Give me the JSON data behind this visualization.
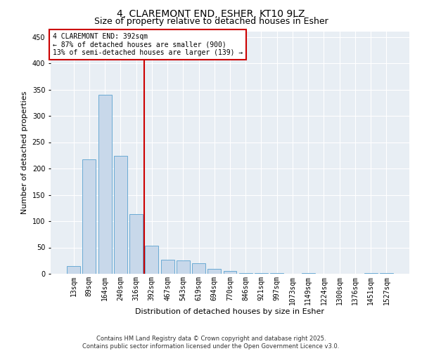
{
  "title": "4, CLAREMONT END, ESHER, KT10 9LZ",
  "subtitle": "Size of property relative to detached houses in Esher",
  "xlabel": "Distribution of detached houses by size in Esher",
  "ylabel": "Number of detached properties",
  "bar_color": "#c8d8ea",
  "bar_edge_color": "#6aaad4",
  "bg_color": "#e8eef4",
  "grid_color": "#ffffff",
  "categories": [
    "13sqm",
    "89sqm",
    "164sqm",
    "240sqm",
    "316sqm",
    "392sqm",
    "467sqm",
    "543sqm",
    "619sqm",
    "694sqm",
    "770sqm",
    "846sqm",
    "921sqm",
    "997sqm",
    "1073sqm",
    "1149sqm",
    "1224sqm",
    "1300sqm",
    "1376sqm",
    "1451sqm",
    "1527sqm"
  ],
  "values": [
    15,
    217,
    340,
    224,
    113,
    54,
    27,
    26,
    20,
    9,
    6,
    1,
    1,
    1,
    0,
    1,
    0,
    0,
    0,
    1,
    2
  ],
  "vline_color": "#cc0000",
  "annotation_text": "4 CLAREMONT END: 392sqm\n← 87% of detached houses are smaller (900)\n13% of semi-detached houses are larger (139) →",
  "annotation_box_color": "#cc0000",
  "ylim": [
    0,
    460
  ],
  "yticks": [
    0,
    50,
    100,
    150,
    200,
    250,
    300,
    350,
    400,
    450
  ],
  "footer": "Contains HM Land Registry data © Crown copyright and database right 2025.\nContains public sector information licensed under the Open Government Licence v3.0.",
  "title_fontsize": 10,
  "subtitle_fontsize": 9,
  "label_fontsize": 8,
  "tick_fontsize": 7,
  "annotation_fontsize": 7,
  "footer_fontsize": 6
}
